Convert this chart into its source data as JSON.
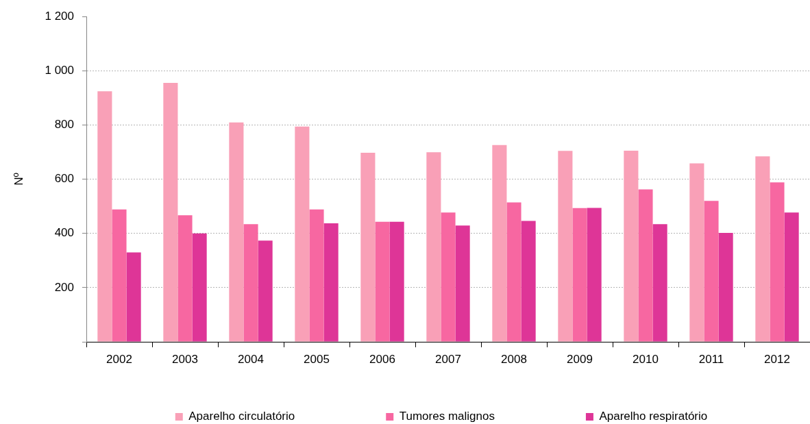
{
  "chart_data": {
    "type": "bar",
    "ylabel": "Nº",
    "categories": [
      "2002",
      "2003",
      "2004",
      "2005",
      "2006",
      "2007",
      "2008",
      "2009",
      "2010",
      "2011",
      "2012"
    ],
    "series": [
      {
        "name": "Aparelho circulatório",
        "color": "#f9a0b7",
        "values": [
          924,
          955,
          809,
          794,
          697,
          699,
          726,
          704,
          705,
          658,
          684
        ]
      },
      {
        "name": "Tumores malignos",
        "color": "#f767a1",
        "values": [
          488,
          467,
          434,
          488,
          443,
          477,
          514,
          493,
          562,
          520,
          588
        ]
      },
      {
        "name": "Aparelho respiratório",
        "color": "#de3597",
        "values": [
          330,
          400,
          373,
          437,
          443,
          429,
          446,
          494,
          434,
          402,
          477
        ]
      }
    ],
    "ylim": [
      0,
      1200
    ],
    "yticks": [
      {
        "value": 0,
        "label": null
      },
      200,
      400,
      600,
      800,
      {
        "value": 1000,
        "label": "1 000"
      },
      {
        "value": 1200,
        "label": "1 200"
      }
    ],
    "grid": "y",
    "legend": "bottom"
  }
}
